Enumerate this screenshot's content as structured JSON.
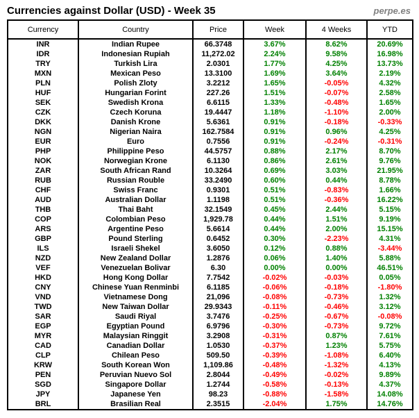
{
  "header": {
    "title": "Currencies against Dollar (USD) - Week 35",
    "brand": "perpe.es"
  },
  "colors": {
    "positive": "#008000",
    "negative": "#ff0000",
    "border": "#000000",
    "brand_text": "#808080"
  },
  "chart_data": {
    "type": "table",
    "title": "Currencies against Dollar (USD) - Week 35",
    "columns": [
      "Currency",
      "Country",
      "Price",
      "Week",
      "4 Weeks",
      "YTD"
    ],
    "rows": [
      [
        "INR",
        "Indian Rupee",
        "66.3748",
        "3.67%",
        "8.62%",
        "20.69%"
      ],
      [
        "IDR",
        "Indonesian Rupiah",
        "11,272.02",
        "2.24%",
        "9.58%",
        "16.98%"
      ],
      [
        "TRY",
        "Turkish Lira",
        "2.0301",
        "1.77%",
        "4.25%",
        "13.73%"
      ],
      [
        "MXN",
        "Mexican Peso",
        "13.3100",
        "1.69%",
        "3.64%",
        "2.19%"
      ],
      [
        "PLN",
        "Polish Zloty",
        "3.2212",
        "1.65%",
        "-0.05%",
        "4.32%"
      ],
      [
        "HUF",
        "Hungarian Forint",
        "227.26",
        "1.51%",
        "-0.07%",
        "2.58%"
      ],
      [
        "SEK",
        "Swedish Krona",
        "6.6115",
        "1.33%",
        "-0.48%",
        "1.65%"
      ],
      [
        "CZK",
        "Czech Koruna",
        "19.4447",
        "1.18%",
        "-1.10%",
        "2.00%"
      ],
      [
        "DKK",
        "Danish Krone",
        "5.6361",
        "0.91%",
        "-0.18%",
        "-0.33%"
      ],
      [
        "NGN",
        "Nigerian Naira",
        "162.7584",
        "0.91%",
        "0.96%",
        "4.25%"
      ],
      [
        "EUR",
        "Euro",
        "0.7556",
        "0.91%",
        "-0.24%",
        "-0.31%"
      ],
      [
        "PHP",
        "Philippine Peso",
        "44.5757",
        "0.88%",
        "2.17%",
        "8.70%"
      ],
      [
        "NOK",
        "Norwegian Krone",
        "6.1130",
        "0.86%",
        "2.61%",
        "9.76%"
      ],
      [
        "ZAR",
        "South African Rand",
        "10.3264",
        "0.69%",
        "3.03%",
        "21.95%"
      ],
      [
        "RUB",
        "Russian Rouble",
        "33.2490",
        "0.60%",
        "0.44%",
        "8.78%"
      ],
      [
        "CHF",
        "Swiss Franc",
        "0.9301",
        "0.51%",
        "-0.83%",
        "1.66%"
      ],
      [
        "AUD",
        "Australian Dollar",
        "1.1198",
        "0.51%",
        "-0.36%",
        "16.22%"
      ],
      [
        "THB",
        "Thai Baht",
        "32.1549",
        "0.45%",
        "2.44%",
        "5.15%"
      ],
      [
        "COP",
        "Colombian Peso",
        "1,929.78",
        "0.44%",
        "1.51%",
        "9.19%"
      ],
      [
        "ARS",
        "Argentine Peso",
        "5.6614",
        "0.44%",
        "2.00%",
        "15.15%"
      ],
      [
        "GBP",
        "Pound Sterling",
        "0.6452",
        "0.30%",
        "-2.23%",
        "4.31%"
      ],
      [
        "ILS",
        "Israeli Shekel",
        "3.6050",
        "0.12%",
        "0.88%",
        "-3.44%"
      ],
      [
        "NZD",
        "New Zealand Dollar",
        "1.2876",
        "0.06%",
        "1.40%",
        "5.88%"
      ],
      [
        "VEF",
        "Venezuelan Bolivar",
        "6.30",
        "0.00%",
        "0.00%",
        "46.51%"
      ],
      [
        "HKD",
        "Hong Kong Dollar",
        "7.7542",
        "-0.02%",
        "-0.03%",
        "0.05%"
      ],
      [
        "CNY",
        "Chinese Yuan Renminbi",
        "6.1185",
        "-0.06%",
        "-0.18%",
        "-1.80%"
      ],
      [
        "VND",
        "Vietnamese Dong",
        "21,096",
        "-0.08%",
        "-0.73%",
        "1.32%"
      ],
      [
        "TWD",
        "New Taiwan Dollar",
        "29.9343",
        "-0.11%",
        "-0.46%",
        "3.12%"
      ],
      [
        "SAR",
        "Saudi Riyal",
        "3.7476",
        "-0.25%",
        "-0.67%",
        "-0.08%"
      ],
      [
        "EGP",
        "Egyptian Pound",
        "6.9796",
        "-0.30%",
        "-0.73%",
        "9.72%"
      ],
      [
        "MYR",
        "Malaysian Ringgit",
        "3.2908",
        "-0.31%",
        "0.87%",
        "7.61%"
      ],
      [
        "CAD",
        "Canadian Dollar",
        "1.0530",
        "-0.37%",
        "1.23%",
        "5.75%"
      ],
      [
        "CLP",
        "Chilean Peso",
        "509.50",
        "-0.39%",
        "-1.08%",
        "6.40%"
      ],
      [
        "KRW",
        "South Korean Won",
        "1,109.86",
        "-0.48%",
        "-1.32%",
        "4.13%"
      ],
      [
        "PEN",
        "Peruvian Nuevo Sol",
        "2.8044",
        "-0.49%",
        "-0.02%",
        "9.89%"
      ],
      [
        "SGD",
        "Singapore Dollar",
        "1.2744",
        "-0.58%",
        "-0.13%",
        "4.37%"
      ],
      [
        "JPY",
        "Japanese Yen",
        "98.23",
        "-0.88%",
        "-1.58%",
        "14.08%"
      ],
      [
        "BRL",
        "Brasilian Real",
        "2.3515",
        "-2.04%",
        "1.75%",
        "14.76%"
      ]
    ]
  }
}
